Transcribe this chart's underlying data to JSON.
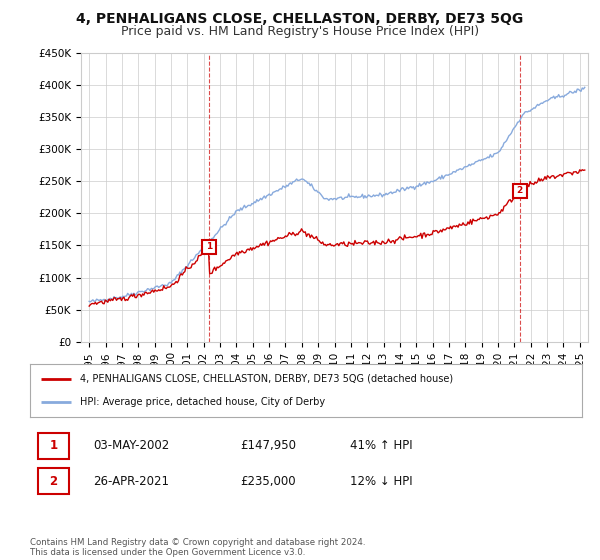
{
  "title": "4, PENHALIGANS CLOSE, CHELLASTON, DERBY, DE73 5QG",
  "subtitle": "Price paid vs. HM Land Registry's House Price Index (HPI)",
  "ylabel_ticks": [
    "£0",
    "£50K",
    "£100K",
    "£150K",
    "£200K",
    "£250K",
    "£300K",
    "£350K",
    "£400K",
    "£450K"
  ],
  "ylabel_values": [
    0,
    50000,
    100000,
    150000,
    200000,
    250000,
    300000,
    350000,
    400000,
    450000
  ],
  "ylim": [
    0,
    450000
  ],
  "xlim_start": 1994.5,
  "xlim_end": 2025.5,
  "red_line_color": "#cc0000",
  "blue_line_color": "#88aadd",
  "marker1_x": 2002.34,
  "marker1_y": 147950,
  "marker2_x": 2021.32,
  "marker2_y": 235000,
  "legend_entry1": "4, PENHALIGANS CLOSE, CHELLASTON, DERBY, DE73 5QG (detached house)",
  "legend_entry2": "HPI: Average price, detached house, City of Derby",
  "table_row1": [
    "1",
    "03-MAY-2002",
    "£147,950",
    "41% ↑ HPI"
  ],
  "table_row2": [
    "2",
    "26-APR-2021",
    "£235,000",
    "12% ↓ HPI"
  ],
  "footer": "Contains HM Land Registry data © Crown copyright and database right 2024.\nThis data is licensed under the Open Government Licence v3.0.",
  "background_color": "#ffffff",
  "grid_color": "#cccccc",
  "title_fontsize": 10,
  "subtitle_fontsize": 9,
  "tick_fontsize": 7.5,
  "xlabel_years": [
    1995,
    1996,
    1997,
    1998,
    1999,
    2000,
    2001,
    2002,
    2003,
    2004,
    2005,
    2006,
    2007,
    2008,
    2009,
    2010,
    2011,
    2012,
    2013,
    2014,
    2015,
    2016,
    2017,
    2018,
    2019,
    2020,
    2021,
    2022,
    2023,
    2024,
    2025
  ]
}
